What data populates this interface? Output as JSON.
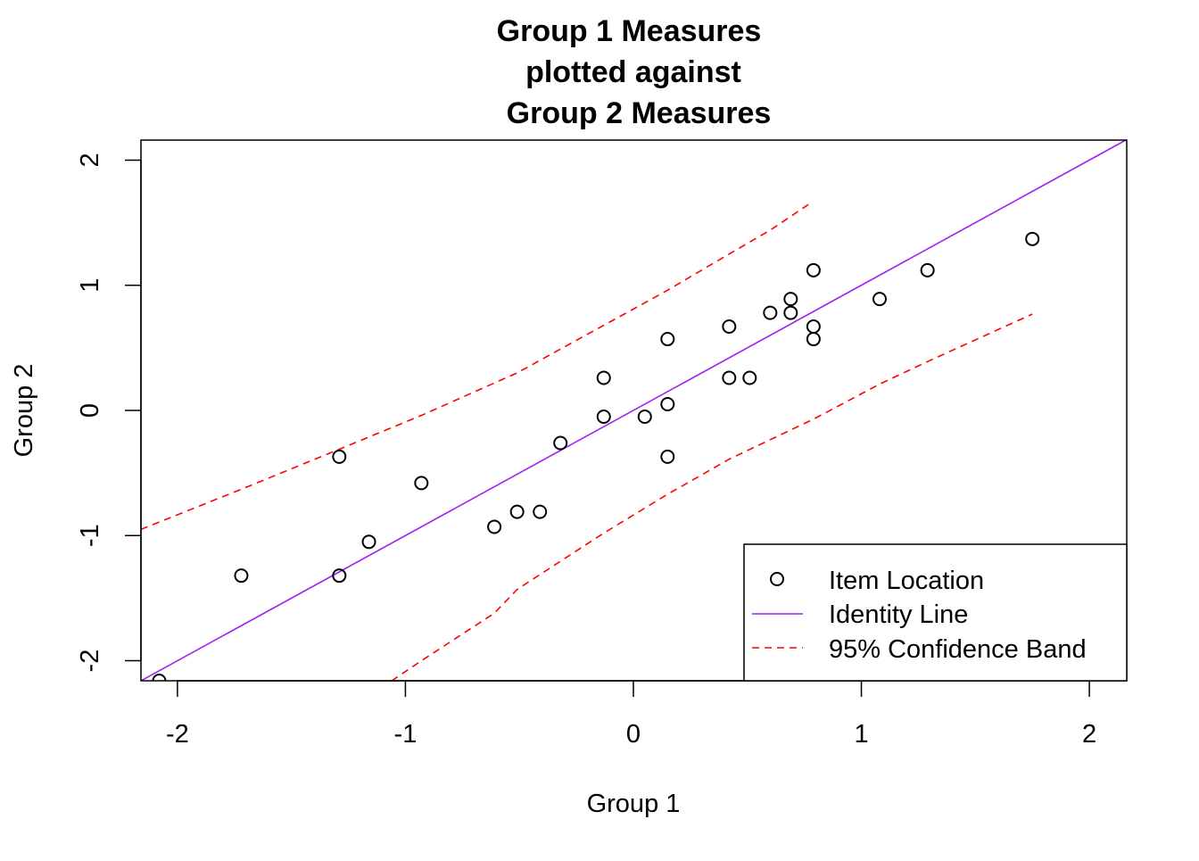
{
  "chart_data": {
    "type": "scatter",
    "title": [
      "Group 1 Measures",
      "plotted against",
      "Group 2 Measures"
    ],
    "xlabel": "Group 1",
    "ylabel": "Group 2",
    "xlim": [
      -2.16,
      2.164
    ],
    "ylim": [
      -2.16,
      2.16
    ],
    "xticks": [
      -2,
      -1,
      0,
      1,
      2
    ],
    "xtick_labels": [
      "-2",
      "-1",
      "0",
      "1",
      "2"
    ],
    "yticks": [
      -2,
      -1,
      0,
      1,
      2
    ],
    "ytick_labels": [
      "-2",
      "-1",
      "0",
      "1",
      "2"
    ],
    "grid": false,
    "legend_position": "bottom-right",
    "legend": [
      "Item Location",
      "Identity Line",
      "95% Confidence Band"
    ],
    "colors": {
      "points": "#000000",
      "identity": "#a020f0",
      "band": "#ff0000"
    },
    "points": [
      [
        -2.08,
        -2.16
      ],
      [
        -1.72,
        -1.32
      ],
      [
        -1.29,
        -0.37
      ],
      [
        -1.29,
        -1.32
      ],
      [
        -1.16,
        -1.05
      ],
      [
        -0.93,
        -0.58
      ],
      [
        -0.61,
        -0.93
      ],
      [
        -0.51,
        -0.81
      ],
      [
        -0.41,
        -0.81
      ],
      [
        -0.32,
        -0.26
      ],
      [
        -0.13,
        0.26
      ],
      [
        -0.13,
        -0.05
      ],
      [
        0.05,
        -0.05
      ],
      [
        0.15,
        0.57
      ],
      [
        0.15,
        0.05
      ],
      [
        0.15,
        -0.37
      ],
      [
        0.42,
        0.67
      ],
      [
        0.42,
        0.26
      ],
      [
        0.51,
        0.26
      ],
      [
        0.6,
        0.78
      ],
      [
        0.69,
        0.89
      ],
      [
        0.69,
        0.78
      ],
      [
        0.79,
        1.12
      ],
      [
        0.79,
        0.67
      ],
      [
        0.79,
        0.57
      ],
      [
        1.08,
        0.89
      ],
      [
        1.29,
        1.12
      ],
      [
        1.75,
        1.37
      ]
    ],
    "identity_line": [
      [
        -2.16,
        -2.16
      ],
      [
        2.164,
        2.164
      ]
    ],
    "band_upper": [
      [
        -2.16,
        -0.95
      ],
      [
        -1.72,
        -0.63
      ],
      [
        -1.29,
        -0.31
      ],
      [
        -0.93,
        -0.04
      ],
      [
        -0.51,
        0.3
      ],
      [
        -0.13,
        0.68
      ],
      [
        0.14,
        0.95
      ],
      [
        0.42,
        1.25
      ],
      [
        0.6,
        1.44
      ],
      [
        0.78,
        1.66
      ]
    ],
    "band_lower": [
      [
        -1.06,
        -2.16
      ],
      [
        -0.93,
        -2.0
      ],
      [
        -0.61,
        -1.62
      ],
      [
        -0.51,
        -1.43
      ],
      [
        -0.13,
        -0.98
      ],
      [
        0.14,
        -0.68
      ],
      [
        0.42,
        -0.39
      ],
      [
        0.79,
        -0.07
      ],
      [
        1.08,
        0.21
      ],
      [
        1.29,
        0.39
      ],
      [
        1.75,
        0.77
      ]
    ]
  }
}
